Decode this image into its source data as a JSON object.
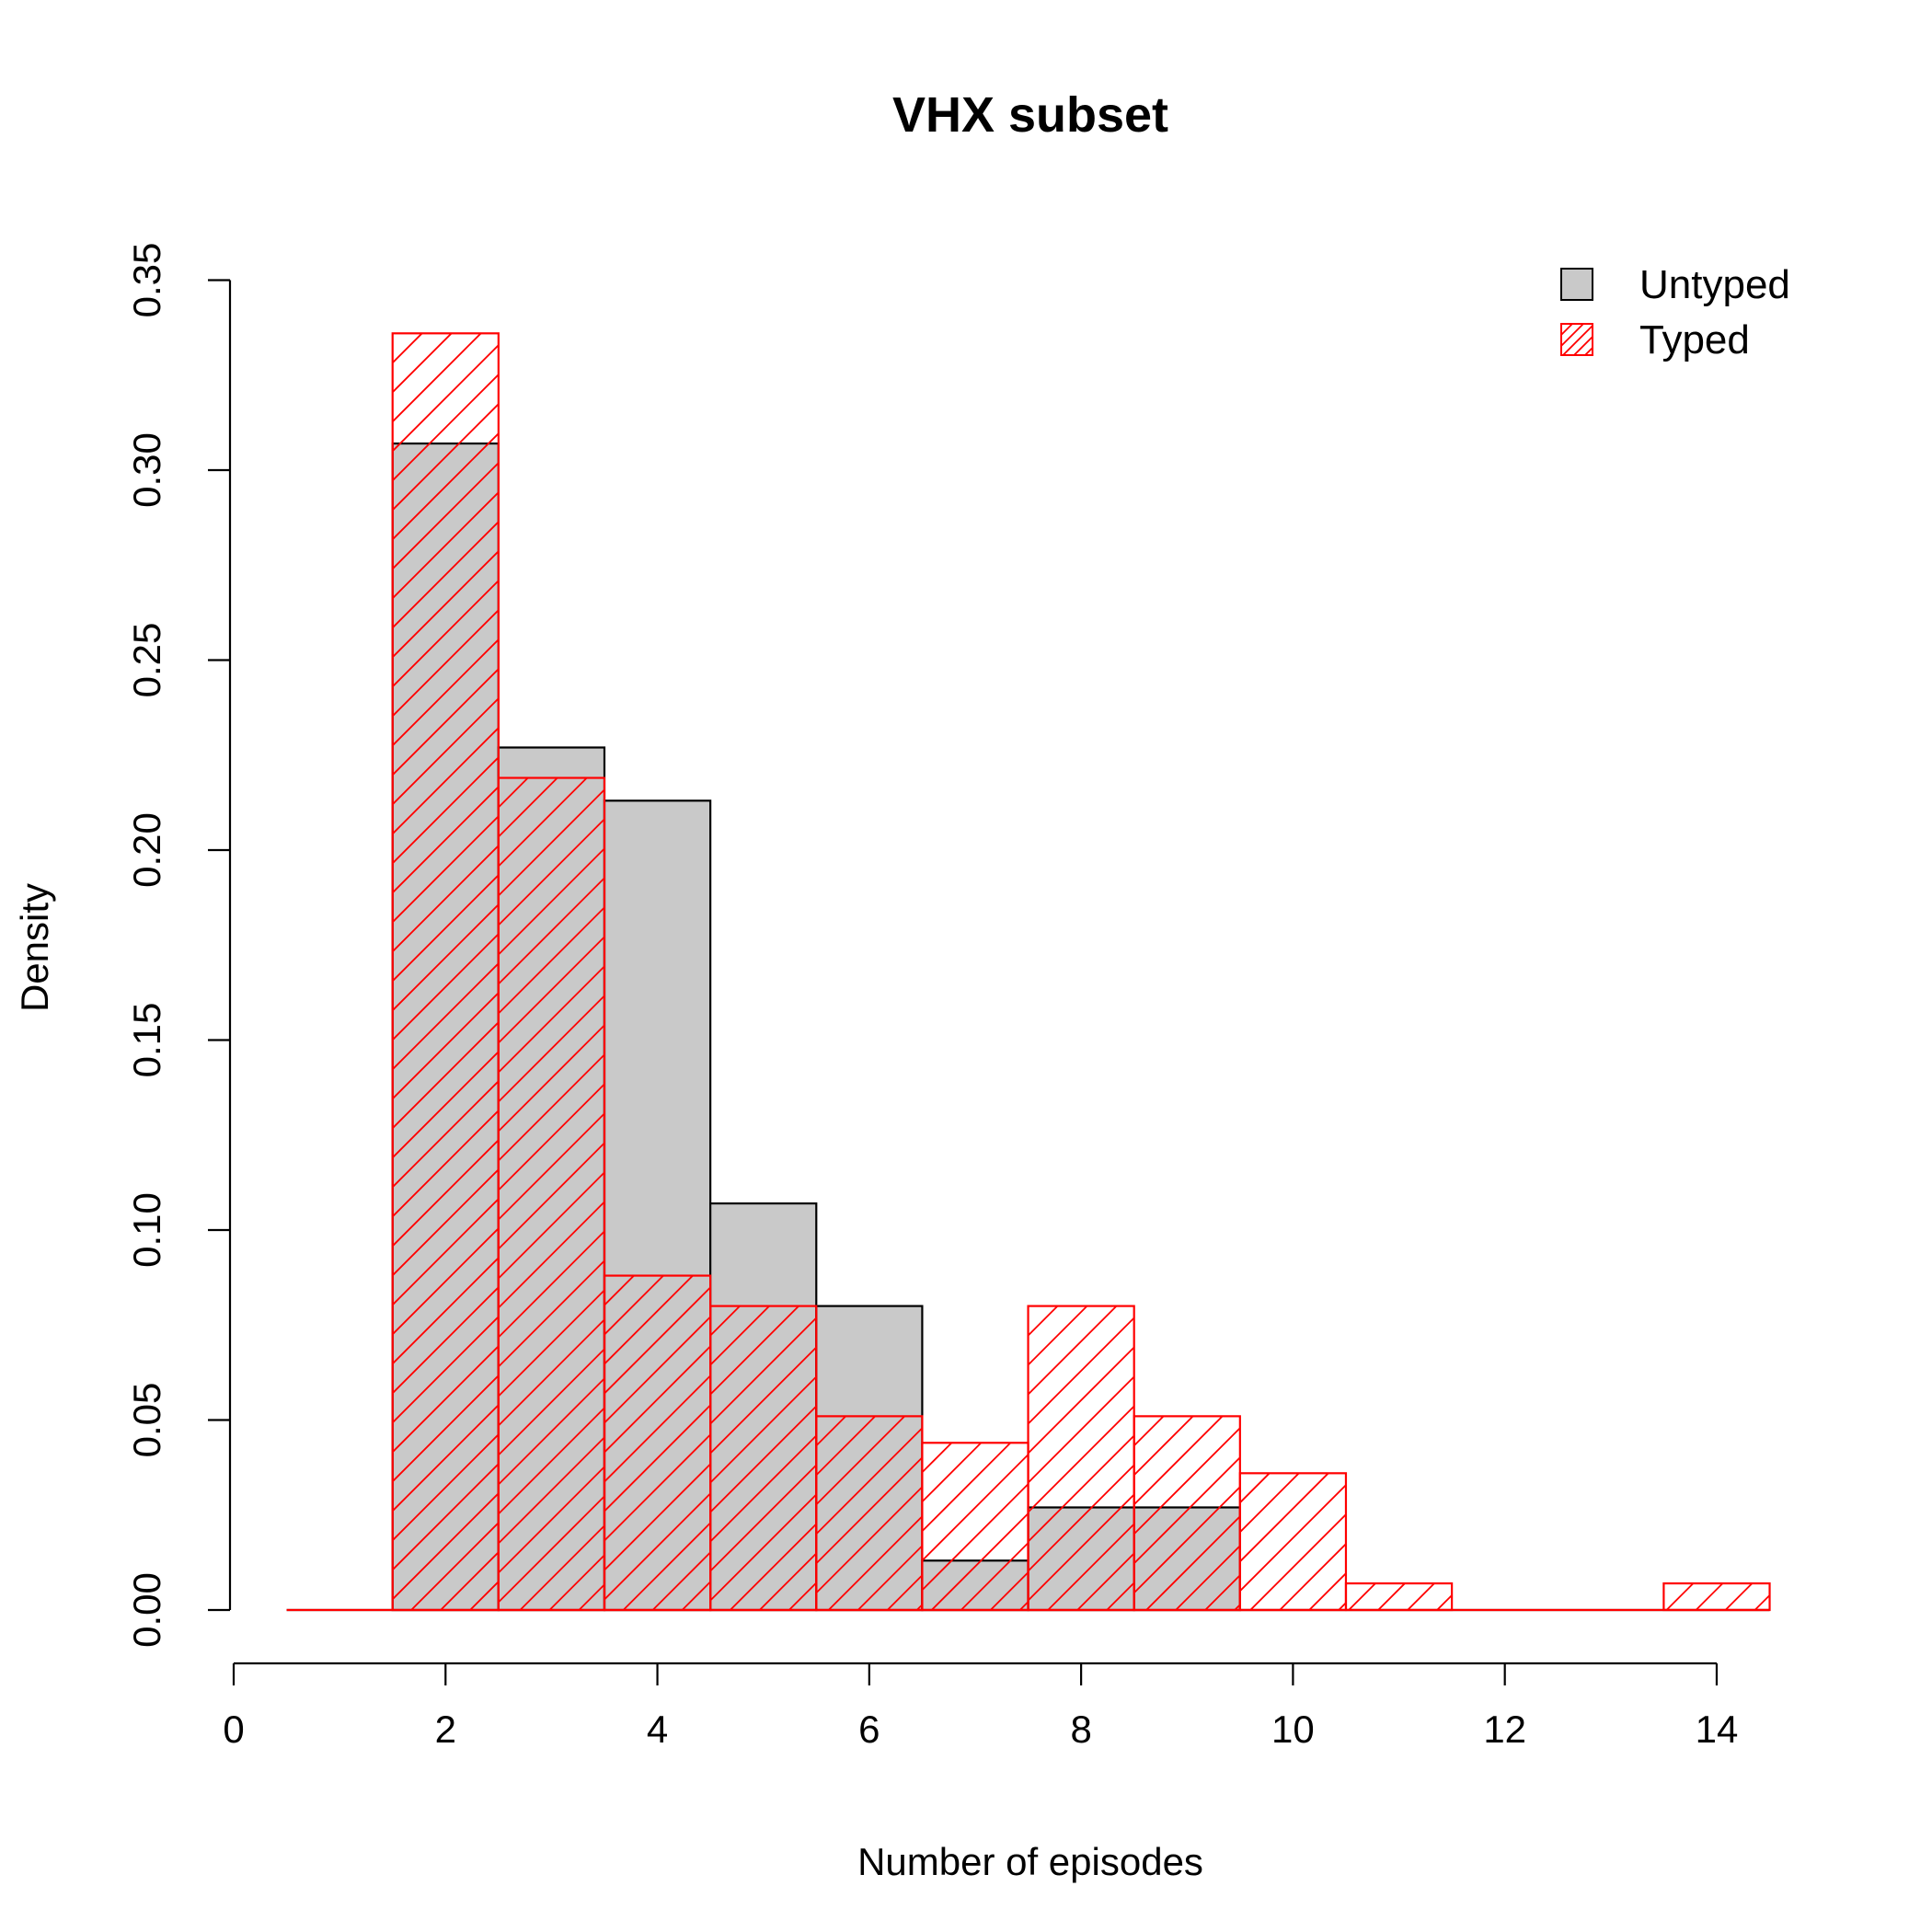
{
  "chart_data": {
    "type": "bar",
    "title": "VHX subset",
    "xlabel": "Number of episodes",
    "ylabel": "Density",
    "xlim": [
      0,
      14
    ],
    "ylim": [
      0,
      0.35
    ],
    "x_ticks": [
      0,
      2,
      4,
      6,
      8,
      10,
      12,
      14
    ],
    "x_tick_labels": [
      "0",
      "2",
      "4",
      "6",
      "8",
      "10",
      "12",
      "14"
    ],
    "y_ticks": [
      0,
      0.05,
      0.1,
      0.15,
      0.2,
      0.25,
      0.3,
      0.35
    ],
    "y_tick_labels": [
      "0.00",
      "0.05",
      "0.10",
      "0.15",
      "0.20",
      "0.25",
      "0.30",
      "0.35"
    ],
    "grid": false,
    "legend_position": "top-right",
    "bin_edges": [
      0.5,
      1.5,
      2.5,
      3.5,
      4.5,
      5.5,
      6.5,
      7.5,
      8.5,
      9.5,
      10.5,
      11.5,
      12.5,
      13.5,
      14.5
    ],
    "series": [
      {
        "name": "Untyped",
        "style": "filled",
        "fill_color": "#c9c9c9",
        "border_color": "#000000",
        "values": [
          0,
          0.307,
          0.227,
          0.213,
          0.107,
          0.08,
          0.013,
          0.027,
          0.027,
          0,
          0,
          0,
          0,
          0
        ]
      },
      {
        "name": "Typed",
        "style": "hatched",
        "fill_color": "none",
        "border_color": "#ff0000",
        "values": [
          0,
          0.336,
          0.219,
          0.088,
          0.08,
          0.051,
          0.044,
          0.08,
          0.051,
          0.036,
          0.007,
          0,
          0,
          0.007
        ]
      }
    ]
  }
}
